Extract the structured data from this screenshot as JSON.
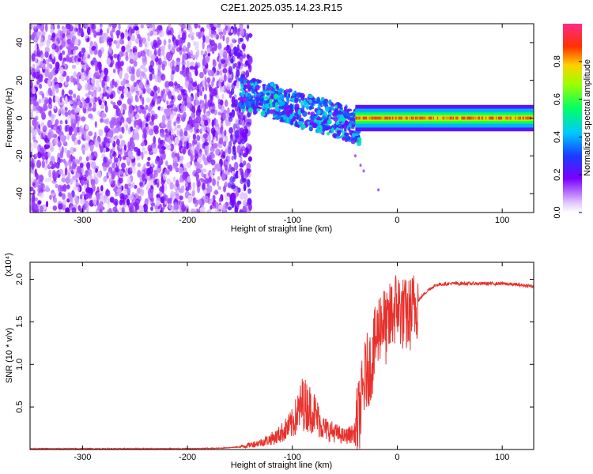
{
  "title": "C2E1.2025.035.14.23.R15",
  "chart_data": [
    {
      "type": "heatmap",
      "xlabel": "Height of straight line (km)",
      "ylabel": "Frequency (Hz)",
      "xlim": [
        -350,
        130
      ],
      "ylim": [
        -50,
        50
      ],
      "xticks": [
        -300,
        -200,
        -100,
        0,
        100
      ],
      "yticks": [
        -40,
        -20,
        0,
        20,
        40
      ],
      "colorbar": {
        "label": "Normalized spectral amplitude",
        "range": [
          0,
          1
        ],
        "ticks": [
          "0.0",
          "0.2",
          "0.4",
          "0.6",
          "0.8"
        ],
        "colormap": "white-purple-blue-cyan-green-yellow-red-pink"
      },
      "regions": [
        {
          "x_range": [
            -350,
            -150
          ],
          "description_values": {
            "amplitude": 0.1
          }
        },
        {
          "x_range": [
            -150,
            -40
          ],
          "center_freq_start": 14,
          "center_freq_end": -5,
          "amplitude": 0.35
        },
        {
          "x_range": [
            -40,
            130
          ],
          "center_freq": 0,
          "amplitude": 0.85
        }
      ]
    },
    {
      "type": "line",
      "xlabel": "Height of straight line (km)",
      "ylabel": "SNR (10 * v/v)",
      "y_multiplier": "(x10⁴)",
      "xlim": [
        -350,
        130
      ],
      "ylim": [
        0,
        2.2
      ],
      "xticks": [
        -300,
        -200,
        -100,
        0,
        100
      ],
      "yticks": [
        "0.5",
        "1.0",
        "1.5",
        "2.0"
      ],
      "series": [
        {
          "color": "#e8312c",
          "x": [
            -350,
            -300,
            -250,
            -200,
            -170,
            -150,
            -130,
            -115,
            -100,
            -90,
            -80,
            -70,
            -60,
            -50,
            -40,
            -35,
            -30,
            -25,
            -20,
            -15,
            -10,
            -5,
            0,
            5,
            10,
            15,
            20,
            25,
            30,
            35,
            40,
            50,
            60,
            80,
            100,
            120,
            130
          ],
          "y": [
            0.01,
            0.01,
            0.01,
            0.01,
            0.015,
            0.03,
            0.08,
            0.15,
            0.3,
            0.55,
            0.45,
            0.25,
            0.2,
            0.15,
            0.2,
            0.5,
            0.9,
            1.0,
            1.3,
            1.55,
            1.4,
            1.6,
            1.7,
            1.6,
            1.55,
            1.65,
            1.75,
            1.82,
            1.88,
            1.92,
            1.94,
            1.95,
            1.95,
            1.95,
            1.95,
            1.93,
            1.92
          ]
        }
      ]
    }
  ]
}
